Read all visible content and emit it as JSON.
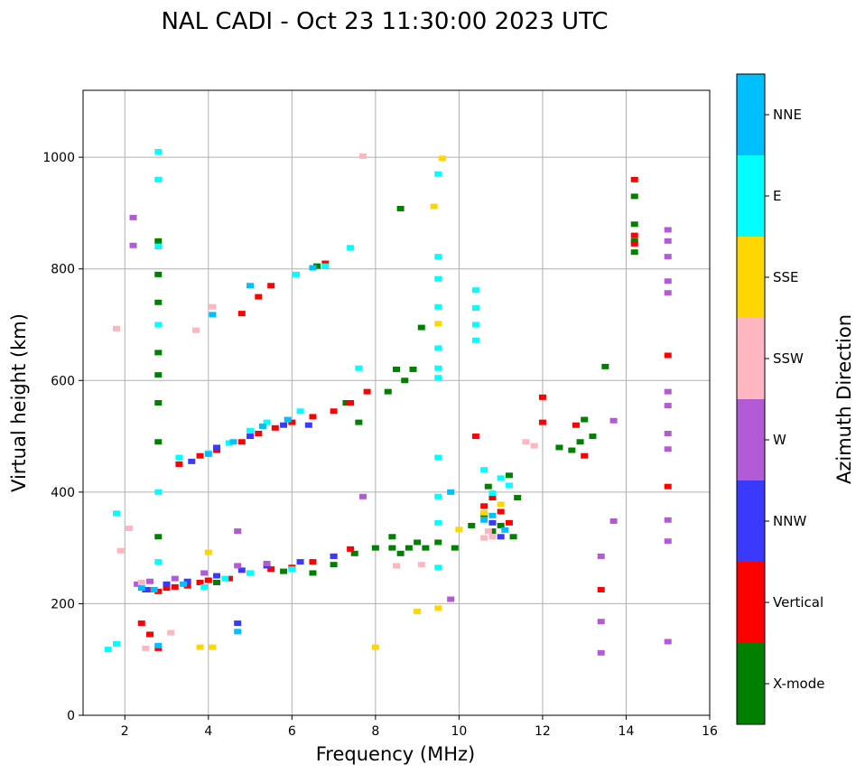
{
  "chart_data": {
    "type": "scatter",
    "title": "NAL CADI - Oct 23 11:30:00 2023 UTC",
    "xlabel": "Frequency (MHz)",
    "ylabel": "Virtual height (km)",
    "xlim": [
      1,
      16
    ],
    "ylim": [
      0,
      1120
    ],
    "xticks": [
      "2",
      "4",
      "6",
      "8",
      "10",
      "12",
      "14",
      "16"
    ],
    "yticks": [
      "0",
      "200",
      "400",
      "600",
      "800",
      "1000"
    ],
    "grid": true,
    "colorbar": {
      "label": "Azimuth Direction",
      "categories": [
        "X-mode",
        "Vertical",
        "NNW",
        "W",
        "SSW",
        "SSE",
        "E",
        "NNE"
      ],
      "colors": [
        "#008000",
        "#ff0000",
        "#3a3aff",
        "#b35ad6",
        "#ffb6c1",
        "#ffd700",
        "#00ffff",
        "#00bfff"
      ]
    },
    "series": [
      {
        "name": "X-mode",
        "points": [
          [
            2.8,
            850
          ],
          [
            2.8,
            790
          ],
          [
            2.8,
            740
          ],
          [
            2.8,
            650
          ],
          [
            2.8,
            610
          ],
          [
            2.8,
            560
          ],
          [
            2.8,
            490
          ],
          [
            2.8,
            320
          ],
          [
            4.2,
            238
          ],
          [
            5.8,
            258
          ],
          [
            6.5,
            255
          ],
          [
            7,
            270
          ],
          [
            7.5,
            290
          ],
          [
            8,
            300
          ],
          [
            8.4,
            320
          ],
          [
            8.4,
            300
          ],
          [
            8.6,
            290
          ],
          [
            8.8,
            300
          ],
          [
            9,
            310
          ],
          [
            9.2,
            300
          ],
          [
            9.5,
            310
          ],
          [
            9.9,
            300
          ],
          [
            10.3,
            340
          ],
          [
            10.6,
            360
          ],
          [
            10.8,
            330
          ],
          [
            11,
            340
          ],
          [
            11.3,
            320
          ],
          [
            11.4,
            390
          ],
          [
            10.7,
            410
          ],
          [
            11.2,
            430
          ],
          [
            8.3,
            580
          ],
          [
            8.5,
            620
          ],
          [
            8.7,
            600
          ],
          [
            8.9,
            620
          ],
          [
            8.6,
            908
          ],
          [
            9.1,
            695
          ],
          [
            6.6,
            805
          ],
          [
            7.6,
            525
          ],
          [
            7.3,
            560
          ],
          [
            12.4,
            480
          ],
          [
            12.7,
            475
          ],
          [
            12.9,
            490
          ],
          [
            13,
            530
          ],
          [
            13.2,
            500
          ],
          [
            13.5,
            625
          ],
          [
            14.2,
            930
          ],
          [
            14.2,
            880
          ],
          [
            14.2,
            830
          ],
          [
            14.2,
            850
          ]
        ]
      },
      {
        "name": "Vertical",
        "points": [
          [
            2.6,
            225
          ],
          [
            2.8,
            222
          ],
          [
            3,
            228
          ],
          [
            3.2,
            230
          ],
          [
            3.5,
            232
          ],
          [
            3.8,
            238
          ],
          [
            4,
            242
          ],
          [
            4.5,
            245
          ],
          [
            5,
            255
          ],
          [
            5.5,
            262
          ],
          [
            6,
            265
          ],
          [
            6.5,
            275
          ],
          [
            7,
            285
          ],
          [
            7.4,
            298
          ],
          [
            3.3,
            450
          ],
          [
            3.8,
            465
          ],
          [
            4.2,
            475
          ],
          [
            4.8,
            490
          ],
          [
            5.2,
            505
          ],
          [
            5.6,
            515
          ],
          [
            6,
            525
          ],
          [
            6.5,
            535
          ],
          [
            7,
            545
          ],
          [
            7.4,
            560
          ],
          [
            7.8,
            580
          ],
          [
            4.8,
            720
          ],
          [
            5.2,
            750
          ],
          [
            5.5,
            770
          ],
          [
            6.8,
            810
          ],
          [
            2.4,
            165
          ],
          [
            2.6,
            145
          ],
          [
            2.8,
            120
          ],
          [
            13,
            465
          ],
          [
            12.8,
            520
          ],
          [
            14.2,
            960
          ],
          [
            14.2,
            845
          ],
          [
            14.2,
            860
          ],
          [
            15,
            645
          ],
          [
            15,
            410
          ],
          [
            12,
            570
          ],
          [
            12,
            525
          ],
          [
            10.4,
            500
          ],
          [
            11.2,
            345
          ],
          [
            11,
            365
          ],
          [
            10.8,
            390
          ],
          [
            10.6,
            375
          ],
          [
            13.4,
            225
          ]
        ]
      },
      {
        "name": "NNW",
        "points": [
          [
            2.5,
            225
          ],
          [
            3,
            235
          ],
          [
            3.5,
            240
          ],
          [
            4.2,
            250
          ],
          [
            4.8,
            260
          ],
          [
            5.4,
            268
          ],
          [
            6.2,
            275
          ],
          [
            7,
            285
          ],
          [
            4.7,
            165
          ],
          [
            3.6,
            455
          ],
          [
            4.2,
            480
          ],
          [
            5,
            500
          ],
          [
            5.8,
            520
          ],
          [
            6.4,
            520
          ],
          [
            10.8,
            345
          ],
          [
            11,
            320
          ]
        ]
      },
      {
        "name": "W",
        "points": [
          [
            2.2,
            892
          ],
          [
            2.2,
            842
          ],
          [
            2.3,
            235
          ],
          [
            2.6,
            240
          ],
          [
            3.2,
            245
          ],
          [
            3.9,
            255
          ],
          [
            4.7,
            268
          ],
          [
            5.4,
            272
          ],
          [
            4.7,
            330
          ],
          [
            13.4,
            285
          ],
          [
            13.4,
            168
          ],
          [
            13.4,
            112
          ],
          [
            13.7,
            348
          ],
          [
            13.7,
            528
          ],
          [
            15,
            870
          ],
          [
            15,
            850
          ],
          [
            15,
            822
          ],
          [
            15,
            778
          ],
          [
            15,
            757
          ],
          [
            15,
            580
          ],
          [
            15,
            555
          ],
          [
            15,
            505
          ],
          [
            15,
            477
          ],
          [
            15,
            350
          ],
          [
            15,
            312
          ],
          [
            15,
            132
          ],
          [
            9.8,
            208
          ],
          [
            7.7,
            392
          ]
        ]
      },
      {
        "name": "SSW",
        "points": [
          [
            1.8,
            693
          ],
          [
            1.9,
            295
          ],
          [
            2.1,
            335
          ],
          [
            2.4,
            238
          ],
          [
            2.5,
            120
          ],
          [
            3.1,
            148
          ],
          [
            10.7,
            330
          ],
          [
            10.6,
            318
          ],
          [
            10.8,
            320
          ],
          [
            11.8,
            483
          ],
          [
            11.6,
            490
          ],
          [
            7.7,
            1002
          ],
          [
            8.5,
            268
          ],
          [
            9.1,
            270
          ],
          [
            3.7,
            690
          ],
          [
            4.1,
            732
          ]
        ]
      },
      {
        "name": "SSE",
        "points": [
          [
            9,
            186
          ],
          [
            9.4,
            912
          ],
          [
            9.5,
            192
          ],
          [
            9.5,
            702
          ],
          [
            9.6,
            998
          ],
          [
            3.8,
            122
          ],
          [
            4.1,
            122
          ],
          [
            4,
            292
          ],
          [
            10,
            333
          ],
          [
            10.6,
            363
          ],
          [
            11,
            378
          ],
          [
            8,
            122
          ]
        ]
      },
      {
        "name": "E",
        "points": [
          [
            1.8,
            362
          ],
          [
            1.6,
            118
          ],
          [
            1.8,
            128
          ],
          [
            2.8,
            1010
          ],
          [
            2.8,
            960
          ],
          [
            2.8,
            840
          ],
          [
            2.8,
            700
          ],
          [
            2.8,
            400
          ],
          [
            2.8,
            275
          ],
          [
            9.5,
            970
          ],
          [
            9.5,
            822
          ],
          [
            9.5,
            782
          ],
          [
            9.5,
            732
          ],
          [
            9.5,
            658
          ],
          [
            9.5,
            622
          ],
          [
            9.5,
            605
          ],
          [
            9.5,
            462
          ],
          [
            9.5,
            392
          ],
          [
            9.5,
            345
          ],
          [
            9.5,
            265
          ],
          [
            10.4,
            762
          ],
          [
            10.4,
            730
          ],
          [
            10.4,
            700
          ],
          [
            10.4,
            672
          ],
          [
            10.6,
            440
          ],
          [
            11,
            425
          ],
          [
            11.2,
            412
          ],
          [
            10.8,
            398
          ],
          [
            3.3,
            462
          ],
          [
            4,
            470
          ],
          [
            4.5,
            488
          ],
          [
            5,
            510
          ],
          [
            5.4,
            525
          ],
          [
            6.2,
            545
          ],
          [
            7.4,
            838
          ],
          [
            6.8,
            805
          ],
          [
            6.1,
            790
          ],
          [
            7.6,
            622
          ],
          [
            3.9,
            230
          ],
          [
            4.4,
            245
          ],
          [
            5,
            255
          ],
          [
            6,
            262
          ]
        ]
      },
      {
        "name": "NNE",
        "points": [
          [
            2.4,
            228
          ],
          [
            2.7,
            225
          ],
          [
            3.4,
            235
          ],
          [
            4,
            468
          ],
          [
            4.6,
            490
          ],
          [
            5.3,
            518
          ],
          [
            5.9,
            530
          ],
          [
            4.1,
            718
          ],
          [
            5,
            770
          ],
          [
            6.5,
            802
          ],
          [
            9.8,
            400
          ],
          [
            10.6,
            350
          ],
          [
            10.8,
            358
          ],
          [
            11.1,
            332
          ],
          [
            4.7,
            150
          ],
          [
            2.8,
            125
          ]
        ]
      }
    ]
  }
}
